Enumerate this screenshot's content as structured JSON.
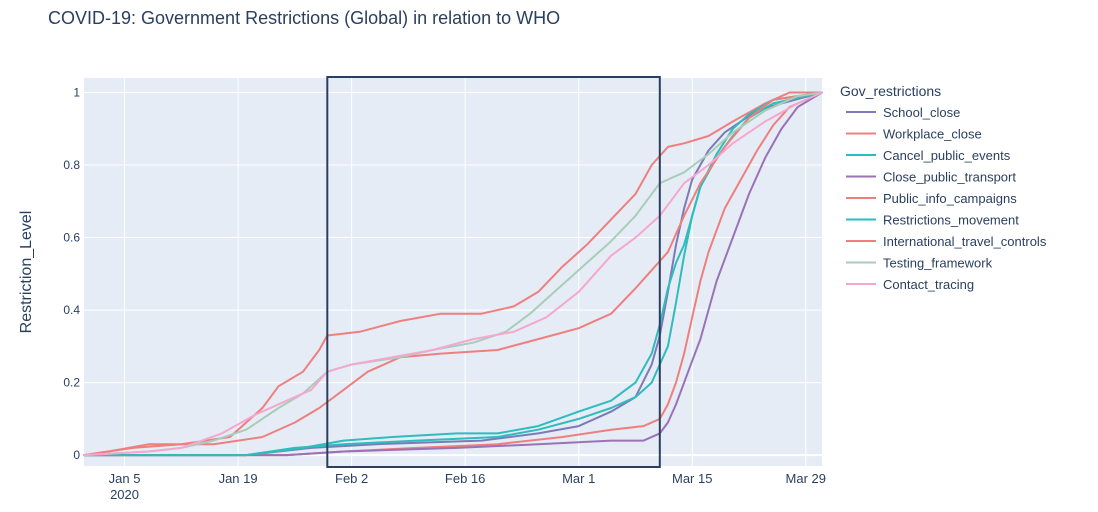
{
  "chart_data": {
    "type": "line",
    "title": "COVID-19: Government Restrictions (Global) in relation to WHO",
    "ylabel": "Restriction_Level",
    "xlabel": "",
    "x_range": [
      "2019-12-31",
      "2020-03-31"
    ],
    "ylim": [
      -0.03,
      1.04
    ],
    "y_ticks": [
      0,
      0.2,
      0.4,
      0.6,
      0.8,
      1
    ],
    "y_tick_labels": [
      "0",
      "0.2",
      "0.4",
      "0.6",
      "0.8",
      "1"
    ],
    "x_ticks": [
      {
        "date": "2020-01-05",
        "label": "Jan 5",
        "sublabel": "2020"
      },
      {
        "date": "2020-01-19",
        "label": "Jan 19",
        "sublabel": ""
      },
      {
        "date": "2020-02-02",
        "label": "Feb 2",
        "sublabel": ""
      },
      {
        "date": "2020-02-16",
        "label": "Feb 16",
        "sublabel": ""
      },
      {
        "date": "2020-03-01",
        "label": "Mar 1",
        "sublabel": ""
      },
      {
        "date": "2020-03-15",
        "label": "Mar 15",
        "sublabel": ""
      },
      {
        "date": "2020-03-29",
        "label": "Mar 29",
        "sublabel": ""
      }
    ],
    "grid": true,
    "legend_title": "Gov_restrictions",
    "legend_position": "right",
    "highlight_box": {
      "x_start": "2020-01-30",
      "x_end": "2020-03-11",
      "color": "#2a3f5f"
    },
    "series": [
      {
        "name": "School_close",
        "color": "#7b7bb8",
        "points": [
          [
            "2019-12-31",
            0
          ],
          [
            "2020-01-20",
            0
          ],
          [
            "2020-01-28",
            0.02
          ],
          [
            "2020-02-05",
            0.03
          ],
          [
            "2020-02-18",
            0.04
          ],
          [
            "2020-02-25",
            0.06
          ],
          [
            "2020-03-01",
            0.08
          ],
          [
            "2020-03-05",
            0.12
          ],
          [
            "2020-03-08",
            0.16
          ],
          [
            "2020-03-10",
            0.25
          ],
          [
            "2020-03-11",
            0.33
          ],
          [
            "2020-03-12",
            0.45
          ],
          [
            "2020-03-13",
            0.58
          ],
          [
            "2020-03-14",
            0.68
          ],
          [
            "2020-03-15",
            0.76
          ],
          [
            "2020-03-17",
            0.84
          ],
          [
            "2020-03-19",
            0.89
          ],
          [
            "2020-03-21",
            0.92
          ],
          [
            "2020-03-23",
            0.95
          ],
          [
            "2020-03-26",
            0.97
          ],
          [
            "2020-03-31",
            1.0
          ]
        ]
      },
      {
        "name": "Workplace_close",
        "color": "#ef7f7f",
        "points": [
          [
            "2019-12-31",
            0
          ],
          [
            "2020-01-25",
            0
          ],
          [
            "2020-02-01",
            0.01
          ],
          [
            "2020-02-10",
            0.02
          ],
          [
            "2020-02-20",
            0.03
          ],
          [
            "2020-02-28",
            0.05
          ],
          [
            "2020-03-05",
            0.07
          ],
          [
            "2020-03-09",
            0.08
          ],
          [
            "2020-03-11",
            0.1
          ],
          [
            "2020-03-12",
            0.14
          ],
          [
            "2020-03-13",
            0.2
          ],
          [
            "2020-03-14",
            0.28
          ],
          [
            "2020-03-15",
            0.38
          ],
          [
            "2020-03-16",
            0.48
          ],
          [
            "2020-03-17",
            0.56
          ],
          [
            "2020-03-18",
            0.62
          ],
          [
            "2020-03-19",
            0.68
          ],
          [
            "2020-03-21",
            0.76
          ],
          [
            "2020-03-23",
            0.84
          ],
          [
            "2020-03-25",
            0.91
          ],
          [
            "2020-03-27",
            0.96
          ],
          [
            "2020-03-31",
            1.0
          ]
        ]
      },
      {
        "name": "Cancel_public_events",
        "color": "#2ebcbc",
        "points": [
          [
            "2019-12-31",
            0
          ],
          [
            "2020-01-20",
            0
          ],
          [
            "2020-01-26",
            0.02
          ],
          [
            "2020-02-01",
            0.03
          ],
          [
            "2020-02-10",
            0.04
          ],
          [
            "2020-02-20",
            0.05
          ],
          [
            "2020-02-25",
            0.07
          ],
          [
            "2020-03-01",
            0.1
          ],
          [
            "2020-03-05",
            0.13
          ],
          [
            "2020-03-08",
            0.16
          ],
          [
            "2020-03-10",
            0.2
          ],
          [
            "2020-03-12",
            0.3
          ],
          [
            "2020-03-13",
            0.42
          ],
          [
            "2020-03-14",
            0.55
          ],
          [
            "2020-03-15",
            0.66
          ],
          [
            "2020-03-16",
            0.74
          ],
          [
            "2020-03-18",
            0.82
          ],
          [
            "2020-03-20",
            0.88
          ],
          [
            "2020-03-22",
            0.93
          ],
          [
            "2020-03-25",
            0.97
          ],
          [
            "2020-03-31",
            1.0
          ]
        ]
      },
      {
        "name": "Close_public_transport",
        "color": "#9a72b5",
        "points": [
          [
            "2019-12-31",
            0
          ],
          [
            "2020-01-25",
            0
          ],
          [
            "2020-02-01",
            0.01
          ],
          [
            "2020-02-15",
            0.02
          ],
          [
            "2020-02-25",
            0.03
          ],
          [
            "2020-03-05",
            0.04
          ],
          [
            "2020-03-09",
            0.04
          ],
          [
            "2020-03-11",
            0.06
          ],
          [
            "2020-03-12",
            0.09
          ],
          [
            "2020-03-13",
            0.14
          ],
          [
            "2020-03-14",
            0.2
          ],
          [
            "2020-03-15",
            0.26
          ],
          [
            "2020-03-16",
            0.32
          ],
          [
            "2020-03-17",
            0.4
          ],
          [
            "2020-03-18",
            0.48
          ],
          [
            "2020-03-20",
            0.6
          ],
          [
            "2020-03-22",
            0.72
          ],
          [
            "2020-03-24",
            0.82
          ],
          [
            "2020-03-26",
            0.9
          ],
          [
            "2020-03-28",
            0.96
          ],
          [
            "2020-03-31",
            1.0
          ]
        ]
      },
      {
        "name": "Public_info_campaigns",
        "color": "#ef7f7f",
        "points": [
          [
            "2019-12-31",
            0
          ],
          [
            "2020-01-03",
            0.01
          ],
          [
            "2020-01-06",
            0.02
          ],
          [
            "2020-01-12",
            0.03
          ],
          [
            "2020-01-18",
            0.05
          ],
          [
            "2020-01-22",
            0.13
          ],
          [
            "2020-01-24",
            0.19
          ],
          [
            "2020-01-27",
            0.23
          ],
          [
            "2020-01-29",
            0.29
          ],
          [
            "2020-01-30",
            0.33
          ],
          [
            "2020-02-03",
            0.34
          ],
          [
            "2020-02-08",
            0.37
          ],
          [
            "2020-02-13",
            0.39
          ],
          [
            "2020-02-18",
            0.39
          ],
          [
            "2020-02-22",
            0.41
          ],
          [
            "2020-02-25",
            0.45
          ],
          [
            "2020-02-28",
            0.52
          ],
          [
            "2020-03-02",
            0.58
          ],
          [
            "2020-03-05",
            0.65
          ],
          [
            "2020-03-08",
            0.72
          ],
          [
            "2020-03-10",
            0.8
          ],
          [
            "2020-03-12",
            0.85
          ],
          [
            "2020-03-14",
            0.86
          ],
          [
            "2020-03-17",
            0.88
          ],
          [
            "2020-03-20",
            0.92
          ],
          [
            "2020-03-24",
            0.97
          ],
          [
            "2020-03-27",
            1.0
          ],
          [
            "2020-03-31",
            1.0
          ]
        ]
      },
      {
        "name": "Restrictions_movement",
        "color": "#2ebcbc",
        "points": [
          [
            "2019-12-31",
            0
          ],
          [
            "2020-01-20",
            0
          ],
          [
            "2020-01-27",
            0.02
          ],
          [
            "2020-02-01",
            0.04
          ],
          [
            "2020-02-07",
            0.05
          ],
          [
            "2020-02-15",
            0.06
          ],
          [
            "2020-02-20",
            0.06
          ],
          [
            "2020-02-25",
            0.08
          ],
          [
            "2020-03-01",
            0.12
          ],
          [
            "2020-03-05",
            0.15
          ],
          [
            "2020-03-08",
            0.2
          ],
          [
            "2020-03-10",
            0.28
          ],
          [
            "2020-03-11",
            0.36
          ],
          [
            "2020-03-12",
            0.46
          ],
          [
            "2020-03-13",
            0.53
          ],
          [
            "2020-03-14",
            0.58
          ],
          [
            "2020-03-15",
            0.66
          ],
          [
            "2020-03-16",
            0.74
          ],
          [
            "2020-03-18",
            0.83
          ],
          [
            "2020-03-20",
            0.9
          ],
          [
            "2020-03-22",
            0.94
          ],
          [
            "2020-03-25",
            0.98
          ],
          [
            "2020-03-31",
            1.0
          ]
        ]
      },
      {
        "name": "International_travel_controls",
        "color": "#ef7f7f",
        "points": [
          [
            "2019-12-31",
            0
          ],
          [
            "2020-01-03",
            0.01
          ],
          [
            "2020-01-08",
            0.03
          ],
          [
            "2020-01-16",
            0.03
          ],
          [
            "2020-01-22",
            0.05
          ],
          [
            "2020-01-26",
            0.09
          ],
          [
            "2020-01-29",
            0.13
          ],
          [
            "2020-02-01",
            0.18
          ],
          [
            "2020-02-04",
            0.23
          ],
          [
            "2020-02-08",
            0.27
          ],
          [
            "2020-02-13",
            0.28
          ],
          [
            "2020-02-20",
            0.29
          ],
          [
            "2020-02-25",
            0.32
          ],
          [
            "2020-03-01",
            0.35
          ],
          [
            "2020-03-05",
            0.39
          ],
          [
            "2020-03-08",
            0.46
          ],
          [
            "2020-03-10",
            0.51
          ],
          [
            "2020-03-12",
            0.56
          ],
          [
            "2020-03-14",
            0.66
          ],
          [
            "2020-03-16",
            0.75
          ],
          [
            "2020-03-19",
            0.85
          ],
          [
            "2020-03-22",
            0.93
          ],
          [
            "2020-03-25",
            0.98
          ],
          [
            "2020-03-31",
            1.0
          ]
        ]
      },
      {
        "name": "Testing_framework",
        "color": "#a8cdb8",
        "points": [
          [
            "2019-12-31",
            0
          ],
          [
            "2020-01-08",
            0.01
          ],
          [
            "2020-01-12",
            0.02
          ],
          [
            "2020-01-16",
            0.04
          ],
          [
            "2020-01-20",
            0.07
          ],
          [
            "2020-01-24",
            0.13
          ],
          [
            "2020-01-27",
            0.17
          ],
          [
            "2020-01-30",
            0.23
          ],
          [
            "2020-02-02",
            0.25
          ],
          [
            "2020-02-08",
            0.27
          ],
          [
            "2020-02-12",
            0.29
          ],
          [
            "2020-02-17",
            0.31
          ],
          [
            "2020-02-21",
            0.34
          ],
          [
            "2020-02-24",
            0.39
          ],
          [
            "2020-02-27",
            0.45
          ],
          [
            "2020-03-02",
            0.53
          ],
          [
            "2020-03-05",
            0.59
          ],
          [
            "2020-03-08",
            0.66
          ],
          [
            "2020-03-11",
            0.75
          ],
          [
            "2020-03-14",
            0.78
          ],
          [
            "2020-03-17",
            0.83
          ],
          [
            "2020-03-20",
            0.89
          ],
          [
            "2020-03-24",
            0.95
          ],
          [
            "2020-03-28",
            0.99
          ],
          [
            "2020-03-31",
            1.0
          ]
        ]
      },
      {
        "name": "Contact_tracing",
        "color": "#f5a7cf",
        "points": [
          [
            "2019-12-31",
            0
          ],
          [
            "2020-01-08",
            0.01
          ],
          [
            "2020-01-12",
            0.02
          ],
          [
            "2020-01-17",
            0.06
          ],
          [
            "2020-01-21",
            0.11
          ],
          [
            "2020-01-25",
            0.15
          ],
          [
            "2020-01-28",
            0.18
          ],
          [
            "2020-01-30",
            0.23
          ],
          [
            "2020-02-02",
            0.25
          ],
          [
            "2020-02-07",
            0.27
          ],
          [
            "2020-02-12",
            0.29
          ],
          [
            "2020-02-17",
            0.32
          ],
          [
            "2020-02-22",
            0.34
          ],
          [
            "2020-02-26",
            0.38
          ],
          [
            "2020-03-01",
            0.45
          ],
          [
            "2020-03-05",
            0.55
          ],
          [
            "2020-03-08",
            0.6
          ],
          [
            "2020-03-11",
            0.66
          ],
          [
            "2020-03-14",
            0.75
          ],
          [
            "2020-03-17",
            0.8
          ],
          [
            "2020-03-20",
            0.86
          ],
          [
            "2020-03-24",
            0.92
          ],
          [
            "2020-03-28",
            0.97
          ],
          [
            "2020-03-31",
            1.0
          ]
        ]
      }
    ]
  }
}
